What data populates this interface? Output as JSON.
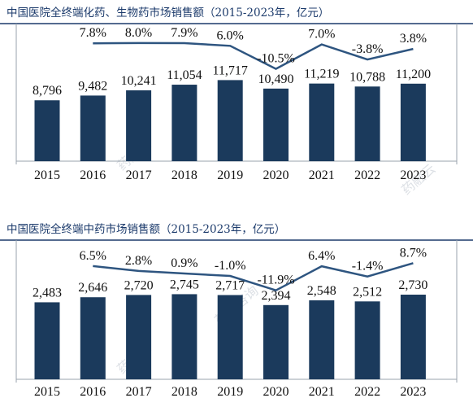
{
  "chart_data": [
    {
      "type": "bar",
      "title": "中国医院全终端化药、生物药市场销售额（2015-2023年，亿元）",
      "categories": [
        "2015",
        "2016",
        "2017",
        "2018",
        "2019",
        "2020",
        "2021",
        "2022",
        "2023"
      ],
      "values": [
        8796,
        9482,
        10241,
        11054,
        11717,
        10490,
        11219,
        10788,
        11200
      ],
      "value_labels": [
        "8,796",
        "9,482",
        "10,241",
        "11,054",
        "11,717",
        "10,490",
        "11,219",
        "10,788",
        "11,200"
      ],
      "growth": [
        null,
        7.8,
        8.0,
        7.9,
        6.0,
        -10.5,
        7.0,
        -3.8,
        3.8
      ],
      "growth_labels": [
        "",
        "7.8%",
        "8.0%",
        "7.9%",
        "6.0%",
        "-10.5%",
        "7.0%",
        "-3.8%",
        "3.8%"
      ],
      "ylim": [
        0,
        18000
      ],
      "bar_color": "#1b3a5c",
      "line_color": "#2e5580",
      "line_ylim": [
        -30,
        12
      ]
    },
    {
      "type": "bar",
      "title": "中国医院全终端中药市场销售额（2015-2023年，亿元）",
      "categories": [
        "2015",
        "2016",
        "2017",
        "2018",
        "2019",
        "2020",
        "2021",
        "2022",
        "2023"
      ],
      "values": [
        2483,
        2646,
        2720,
        2745,
        2717,
        2394,
        2548,
        2512,
        2730
      ],
      "value_labels": [
        "2,483",
        "2,646",
        "2,720",
        "2,745",
        "2,717",
        "2,394",
        "2,548",
        "2,512",
        "2,730"
      ],
      "growth": [
        null,
        6.5,
        2.8,
        0.9,
        -1.0,
        -11.9,
        6.4,
        -1.4,
        8.7
      ],
      "growth_labels": [
        "",
        "6.5%",
        "2.8%",
        "0.9%",
        "-1.0%",
        "-11.9%",
        "6.4%",
        "-1.4%",
        "8.7%"
      ],
      "ylim": [
        0,
        4200
      ],
      "bar_color": "#1b3a5c",
      "line_color": "#2e5580",
      "line_ylim": [
        -30,
        12
      ]
    }
  ]
}
